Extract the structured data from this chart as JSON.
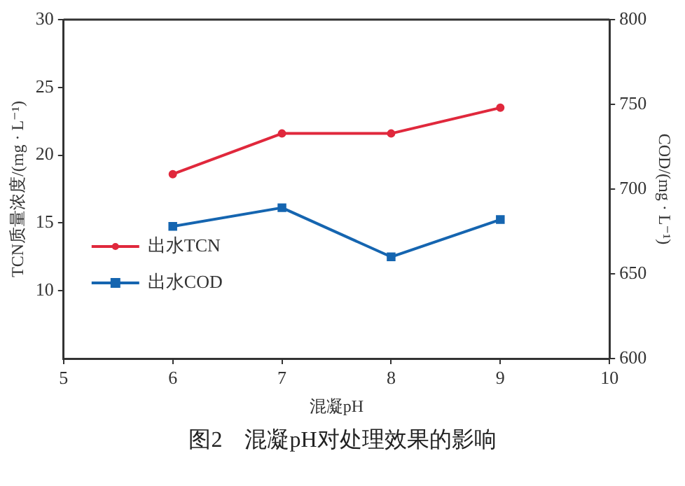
{
  "chart_data": {
    "type": "line",
    "xlabel": "混凝pH",
    "ylabel": "TCN质量浓度/(mg · L⁻¹)",
    "y2label": "COD/(mg · L⁻¹)",
    "x": [
      6,
      7,
      8,
      9
    ],
    "xlim": [
      5,
      10
    ],
    "xticks": [
      5,
      6,
      7,
      8,
      9,
      10
    ],
    "ylim": [
      5,
      30
    ],
    "yticks": [
      10,
      15,
      20,
      25,
      30
    ],
    "y2lim": [
      600,
      800
    ],
    "y2ticks": [
      600,
      650,
      700,
      750,
      800
    ],
    "series": [
      {
        "name": "出水TCN",
        "color": "#e0283c",
        "values": [
          18.6,
          21.6,
          21.6,
          23.5
        ],
        "marker": "circle"
      },
      {
        "name": "出水COD",
        "color": "#1565b0",
        "values": [
          678,
          689,
          660,
          682
        ],
        "axis": "y2",
        "marker": "square"
      }
    ],
    "legend": "bottom left",
    "grid": false,
    "line_style": "solid",
    "annotations": [
      "图2　混凝pH对处理效果的影响"
    ]
  }
}
